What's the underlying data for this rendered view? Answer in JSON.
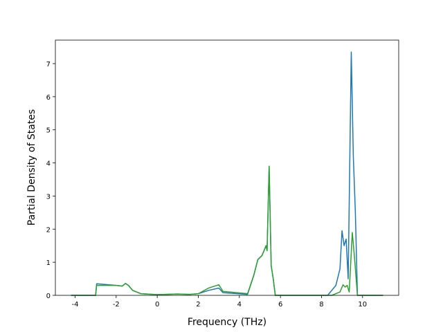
{
  "chart_data": {
    "type": "line",
    "x_label": "Frequency (THz)",
    "y_label": "Partial Density of States",
    "xlim": [
      -4.96,
      11.76
    ],
    "ylim": [
      0,
      7.71
    ],
    "xticks": [
      -4,
      -2,
      0,
      2,
      4,
      6,
      8,
      10
    ],
    "yticks": [
      0,
      1,
      2,
      3,
      4,
      5,
      6,
      7
    ],
    "series": [
      {
        "color": "#1f77b4",
        "x": [
          -4.2,
          -3.0,
          -2.95,
          -2.0,
          -1.7,
          -1.55,
          -1.4,
          -1.2,
          -0.8,
          0,
          1.0,
          1.6,
          2.0,
          2.5,
          3.0,
          3.2,
          4.4,
          4.7,
          4.9,
          5.1,
          5.3,
          5.35,
          5.45,
          5.55,
          5.65,
          5.75,
          8.3,
          8.7,
          8.9,
          9.0,
          9.1,
          9.2,
          9.3,
          9.45,
          9.55,
          9.65,
          9.75,
          11.0
        ],
        "values": [
          0,
          0,
          0.35,
          0.3,
          0.28,
          0.36,
          0.3,
          0.15,
          0.05,
          0.02,
          0.04,
          0.03,
          0.05,
          0.15,
          0.22,
          0.08,
          0.03,
          0.6,
          1.08,
          1.2,
          1.5,
          1.35,
          3.9,
          0.9,
          0.5,
          0,
          0,
          0.3,
          0.8,
          1.95,
          1.5,
          1.7,
          0.5,
          7.35,
          4.2,
          2.5,
          0,
          0
        ]
      },
      {
        "color": "#2ca02c",
        "x": [
          -4.2,
          -3.0,
          -2.95,
          -2.0,
          -1.7,
          -1.55,
          -1.4,
          -1.2,
          -0.8,
          0,
          1.0,
          1.6,
          2.0,
          2.5,
          3.0,
          3.2,
          4.4,
          4.7,
          4.9,
          5.1,
          5.3,
          5.35,
          5.45,
          5.55,
          5.65,
          5.75,
          8.5,
          8.9,
          9.05,
          9.15,
          9.25,
          9.35,
          9.5,
          9.6,
          9.75,
          11.0
        ],
        "values": [
          0,
          0,
          0.3,
          0.3,
          0.28,
          0.36,
          0.3,
          0.15,
          0.05,
          0.02,
          0.04,
          0.03,
          0.05,
          0.22,
          0.32,
          0.12,
          0.05,
          0.6,
          1.08,
          1.2,
          1.5,
          1.35,
          3.9,
          0.9,
          0.5,
          0,
          0,
          0.1,
          0.32,
          0.25,
          0.3,
          0.1,
          1.9,
          1.2,
          0,
          0
        ]
      }
    ]
  }
}
